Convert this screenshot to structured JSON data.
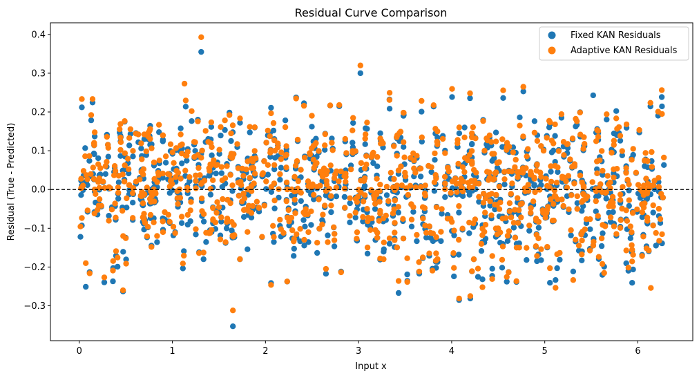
{
  "chart_data": {
    "type": "scatter",
    "title": "Residual Curve Comparison",
    "xlabel": "Input x",
    "ylabel": "Residual (True - Predicted)",
    "xlim": [
      -0.31,
      6.59
    ],
    "ylim": [
      -0.39,
      0.43
    ],
    "xticks": [
      0,
      1,
      2,
      3,
      4,
      5,
      6
    ],
    "yticks": [
      -0.3,
      -0.2,
      -0.1,
      0.0,
      0.1,
      0.2,
      0.3,
      0.4
    ],
    "ytick_labels": [
      "−0.3",
      "−0.2",
      "−0.1",
      "0.0",
      "0.1",
      "0.2",
      "0.3",
      "0.4"
    ],
    "reference_line": {
      "y": 0.0,
      "style": "dashed",
      "color": "#000000"
    },
    "legend_position": "top-right",
    "grid": false,
    "series": [
      {
        "name": "Fixed KAN Residuals",
        "color": "#1f77b4"
      },
      {
        "name": "Adaptive KAN Residuals",
        "color": "#ff7f0e"
      }
    ],
    "highlight_points": {
      "fixed": [
        [
          1.31,
          0.355
        ],
        [
          3.02,
          0.3
        ],
        [
          1.65,
          -0.353
        ],
        [
          0.47,
          -0.263
        ],
        [
          0.07,
          -0.251
        ],
        [
          3.43,
          -0.267
        ],
        [
          4.08,
          -0.285
        ],
        [
          4.2,
          -0.281
        ],
        [
          5.52,
          0.243
        ],
        [
          4.77,
          0.253
        ]
      ],
      "adaptive": [
        [
          1.31,
          0.393
        ],
        [
          3.02,
          0.32
        ],
        [
          1.65,
          -0.312
        ],
        [
          0.47,
          -0.26
        ],
        [
          0.07,
          -0.19
        ],
        [
          3.43,
          -0.236
        ],
        [
          4.08,
          -0.281
        ],
        [
          4.2,
          -0.275
        ],
        [
          4.77,
          0.265
        ],
        [
          6.14,
          -0.254
        ],
        [
          1.13,
          0.273
        ]
      ]
    },
    "n_points_per_series": 1000,
    "x_range": [
      0.0,
      6.283
    ]
  }
}
